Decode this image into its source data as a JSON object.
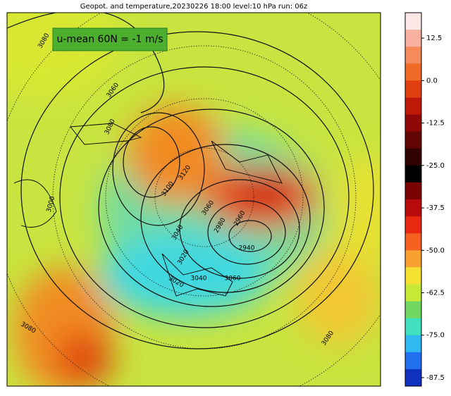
{
  "title": "Geopot. and temperature,20230226 18:00 level:10 hPa run: 06z",
  "annotation": "u-mean 60N = -1 m/s",
  "contour_labels": [
    3080,
    3060,
    3080,
    3060,
    3120,
    3100,
    3040,
    3020,
    2980,
    2960,
    2940,
    3000,
    3020,
    3040,
    3060,
    3080,
    3080
  ],
  "colorbar": {
    "lim": [
      -90,
      20
    ],
    "ticks": [
      12.5,
      {
        "value": 0,
        "label": "0.0"
      },
      -12.5,
      {
        "value": -25,
        "label": "-25.0"
      },
      -37.5,
      {
        "value": -50,
        "label": "-50.0"
      },
      -62.5,
      {
        "value": -75,
        "label": "-75.0"
      },
      -87.5
    ],
    "colors": [
      "#fde8e8",
      "#f8b0a0",
      "#f58a5a",
      "#f06a28",
      "#e04010",
      "#c01808",
      "#900808",
      "#600404",
      "#300202",
      "#000000",
      "#7a0404",
      "#b80a0a",
      "#e82810",
      "#f56020",
      "#f8a030",
      "#f4e030",
      "#c8e838",
      "#70d860",
      "#40e0c0",
      "#30b8f0",
      "#2070f0",
      "#1030c0"
    ]
  }
}
